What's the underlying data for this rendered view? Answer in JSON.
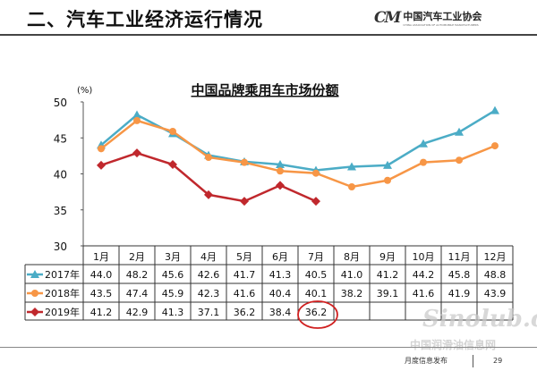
{
  "slide": {
    "heading": "二、汽车工业经济运行情况",
    "logo": {
      "mark": "CM",
      "name": "中国汽车工业协会",
      "subtitle": "CHINA ASSOCIATION OF AUTOMOBILE MANUFACTURERS"
    },
    "footer": {
      "text": "月度信息发布",
      "page": "29"
    },
    "watermark": {
      "brand": "Sinolub.com",
      "site": "中国润滑油信息网"
    }
  },
  "chart_data": {
    "type": "line",
    "title": "中国品牌乘用车市场份额",
    "ylabel": "(%)",
    "ylim": [
      30,
      50
    ],
    "yticks": [
      30,
      35,
      40,
      45,
      50
    ],
    "grid": false,
    "legend": "data-table",
    "categories": [
      "1月",
      "2月",
      "3月",
      "4月",
      "5月",
      "6月",
      "7月",
      "8月",
      "9月",
      "10月",
      "11月",
      "12月"
    ],
    "series": [
      {
        "name": "2017年",
        "color": "#4bacc6",
        "marker": "triangle",
        "values": [
          44.0,
          48.2,
          45.6,
          42.6,
          41.7,
          41.3,
          40.5,
          41.0,
          41.2,
          44.2,
          45.8,
          48.8
        ]
      },
      {
        "name": "2018年",
        "color": "#f79646",
        "marker": "circle",
        "values": [
          43.5,
          47.4,
          45.9,
          42.3,
          41.6,
          40.4,
          40.1,
          38.2,
          39.1,
          41.6,
          41.9,
          43.9
        ]
      },
      {
        "name": "2019年",
        "color": "#c0282d",
        "marker": "diamond",
        "values": [
          41.2,
          42.9,
          41.3,
          37.1,
          36.2,
          38.4,
          36.2,
          null,
          null,
          null,
          null,
          null
        ]
      }
    ],
    "highlight": {
      "series": "2019年",
      "category": "7月",
      "color": "#d02020"
    }
  }
}
